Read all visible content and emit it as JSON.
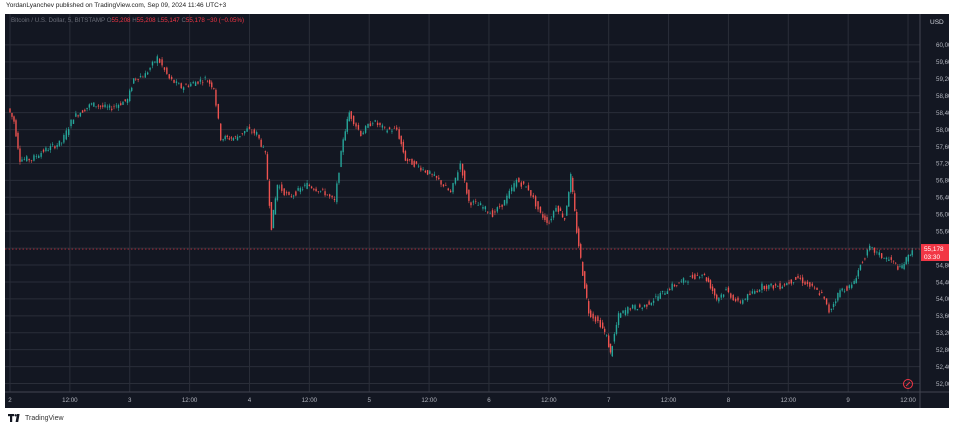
{
  "caption": "YordanLyanchev published on TradingView.com, Sep 09, 2024 11:46 UTC+3",
  "footer_brand": "TradingView",
  "chart_data": {
    "type": "line",
    "title": "Bitcoin / U.S. Dollar, 5, BITSTAMP",
    "ohlc": {
      "open": "55,208",
      "high": "55,208",
      "low": "55,147",
      "close": "55,178",
      "change": "−30 (−0.05%)"
    },
    "currency": "USD",
    "ylim": [
      51800,
      60400
    ],
    "yticks": [
      52000,
      52400,
      52800,
      53200,
      53600,
      54000,
      54400,
      54800,
      55200,
      55600,
      56000,
      56400,
      56800,
      57200,
      57600,
      58000,
      58400,
      58800,
      59200,
      59600,
      60000
    ],
    "ytick_labels": [
      "52,000",
      "52,400",
      "52,800",
      "53,200",
      "53,600",
      "54,000",
      "54,400",
      "54,800",
      "55,200",
      "55,600",
      "56,000",
      "56,400",
      "56,800",
      "57,200",
      "57,600",
      "58,000",
      "58,400",
      "58,800",
      "59,200",
      "59,600",
      "60,000"
    ],
    "xlim": [
      0,
      7.6
    ],
    "xticks": [
      0,
      0.5,
      1,
      1.5,
      2,
      2.5,
      3,
      3.5,
      4,
      4.5,
      5,
      5.5,
      6,
      6.5,
      7,
      7.5
    ],
    "xtick_labels": [
      "2",
      "12:00",
      "3",
      "12:00",
      "4",
      "12:00",
      "5",
      "12:00",
      "6",
      "12:00",
      "7",
      "12:00",
      "8",
      "12:00",
      "9",
      "12:00"
    ],
    "x_unit": "days (Sep 2 00:00 = 0)",
    "price_path": [
      [
        0.0,
        58500
      ],
      [
        0.05,
        58200
      ],
      [
        0.1,
        57300
      ],
      [
        0.2,
        57300
      ],
      [
        0.3,
        57500
      ],
      [
        0.45,
        57700
      ],
      [
        0.55,
        58300
      ],
      [
        0.7,
        58600
      ],
      [
        0.85,
        58500
      ],
      [
        1.0,
        58700
      ],
      [
        1.05,
        59200
      ],
      [
        1.15,
        59300
      ],
      [
        1.25,
        59700
      ],
      [
        1.35,
        59200
      ],
      [
        1.45,
        59000
      ],
      [
        1.55,
        59100
      ],
      [
        1.65,
        59200
      ],
      [
        1.72,
        59000
      ],
      [
        1.78,
        57800
      ],
      [
        1.9,
        57800
      ],
      [
        2.0,
        58000
      ],
      [
        2.08,
        57900
      ],
      [
        2.15,
        57400
      ],
      [
        2.2,
        55700
      ],
      [
        2.25,
        56700
      ],
      [
        2.35,
        56400
      ],
      [
        2.5,
        56700
      ],
      [
        2.65,
        56500
      ],
      [
        2.73,
        56300
      ],
      [
        2.8,
        57800
      ],
      [
        2.85,
        58400
      ],
      [
        2.95,
        57900
      ],
      [
        3.05,
        58200
      ],
      [
        3.15,
        58000
      ],
      [
        3.25,
        58000
      ],
      [
        3.32,
        57300
      ],
      [
        3.45,
        57100
      ],
      [
        3.6,
        56800
      ],
      [
        3.7,
        56500
      ],
      [
        3.78,
        57200
      ],
      [
        3.85,
        56300
      ],
      [
        3.95,
        56200
      ],
      [
        4.05,
        56000
      ],
      [
        4.15,
        56300
      ],
      [
        4.25,
        56800
      ],
      [
        4.35,
        56600
      ],
      [
        4.45,
        56000
      ],
      [
        4.52,
        55800
      ],
      [
        4.58,
        56200
      ],
      [
        4.65,
        55900
      ],
      [
        4.7,
        56900
      ],
      [
        4.75,
        55600
      ],
      [
        4.8,
        54600
      ],
      [
        4.85,
        53700
      ],
      [
        4.95,
        53400
      ],
      [
        5.0,
        53100
      ],
      [
        5.03,
        52700
      ],
      [
        5.1,
        53600
      ],
      [
        5.2,
        53800
      ],
      [
        5.3,
        53800
      ],
      [
        5.45,
        54100
      ],
      [
        5.55,
        54300
      ],
      [
        5.7,
        54500
      ],
      [
        5.8,
        54600
      ],
      [
        5.85,
        54400
      ],
      [
        5.92,
        54000
      ],
      [
        6.0,
        54200
      ],
      [
        6.1,
        53900
      ],
      [
        6.2,
        54100
      ],
      [
        6.3,
        54300
      ],
      [
        6.45,
        54300
      ],
      [
        6.6,
        54500
      ],
      [
        6.7,
        54300
      ],
      [
        6.8,
        54100
      ],
      [
        6.86,
        53700
      ],
      [
        6.95,
        54200
      ],
      [
        7.05,
        54300
      ],
      [
        7.12,
        54800
      ],
      [
        7.2,
        55200
      ],
      [
        7.3,
        55000
      ],
      [
        7.38,
        54900
      ],
      [
        7.45,
        54700
      ],
      [
        7.52,
        55000
      ],
      [
        7.55,
        55178
      ]
    ],
    "last_price_label": "55,178",
    "last_price_countdown": "03:30",
    "last_price_color": "#f23645",
    "up_color": "#26a69a",
    "down_color": "#ef5350",
    "grid": true
  }
}
